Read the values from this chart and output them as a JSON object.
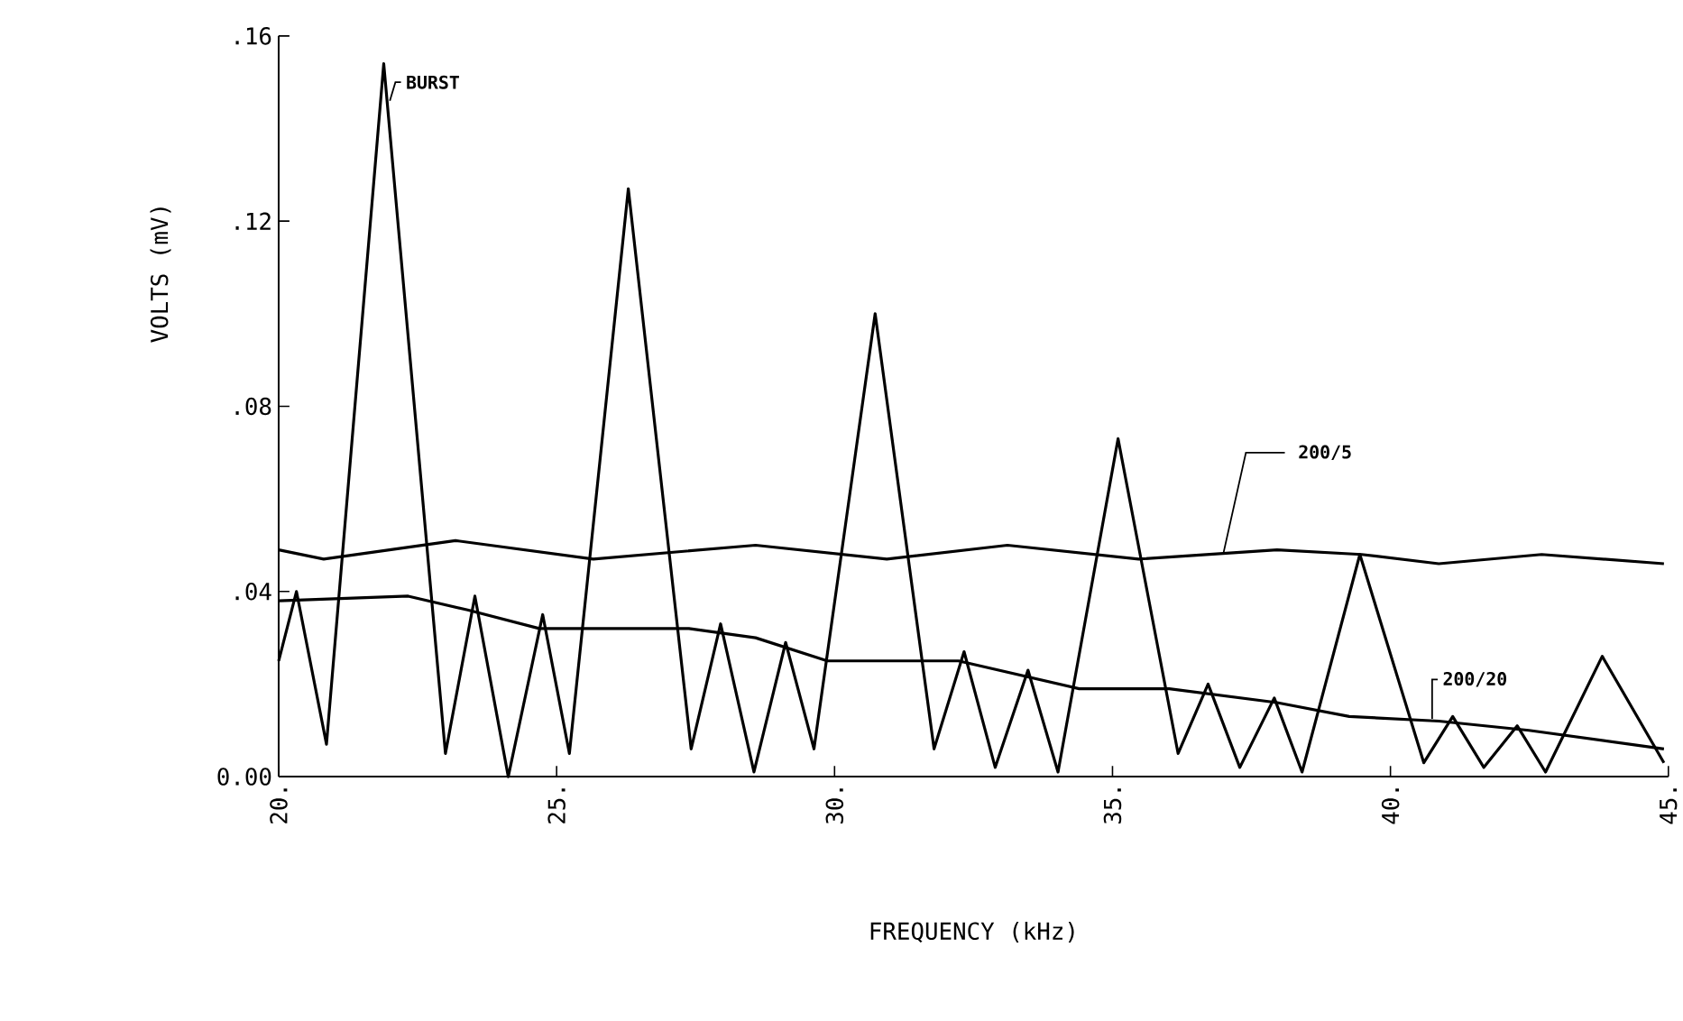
{
  "chart_data": {
    "type": "line",
    "xlabel": "FREQUENCY (kHz)",
    "ylabel": "VOLTS (mV)",
    "xlim": [
      20,
      45
    ],
    "ylim": [
      0,
      0.16
    ],
    "xticks": [
      {
        "value": 20,
        "label": "20."
      },
      {
        "value": 25,
        "label": "25."
      },
      {
        "value": 30,
        "label": "30."
      },
      {
        "value": 35,
        "label": "35."
      },
      {
        "value": 40,
        "label": "40."
      },
      {
        "value": 45,
        "label": "45."
      }
    ],
    "yticks": [
      {
        "value": 0,
        "label": "0.00"
      },
      {
        "value": 0.04,
        "label": ".04"
      },
      {
        "value": 0.08,
        "label": ".08"
      },
      {
        "value": 0.12,
        "label": ".12"
      },
      {
        "value": 0.16,
        "label": ".16"
      }
    ],
    "series": [
      {
        "name": "BURST",
        "color": "#000000",
        "x": [
          20,
          20.32,
          20.86,
          21.89,
          23.0,
          23.53,
          24.13,
          24.75,
          25.23,
          26.29,
          27.42,
          27.95,
          28.55,
          29.12,
          29.63,
          30.73,
          31.79,
          32.33,
          32.89,
          33.48,
          34.02,
          35.1,
          36.18,
          36.72,
          37.29,
          37.91,
          38.41,
          39.45,
          40.6,
          41.12,
          41.68,
          42.28,
          42.79,
          43.81,
          44.92
        ],
        "values": [
          0.025,
          0.04,
          0.007,
          0.154,
          0.005,
          0.039,
          0.0,
          0.035,
          0.005,
          0.127,
          0.006,
          0.033,
          0.001,
          0.029,
          0.006,
          0.1,
          0.006,
          0.027,
          0.002,
          0.023,
          0.001,
          0.073,
          0.005,
          0.02,
          0.002,
          0.017,
          0.001,
          0.048,
          0.003,
          0.013,
          0.002,
          0.011,
          0.001,
          0.026,
          0.003
        ]
      },
      {
        "name": "200/5",
        "color": "#000000",
        "x": [
          20,
          20.81,
          23.18,
          25.66,
          28.58,
          30.94,
          33.11,
          35.47,
          37.96,
          39.48,
          40.87,
          42.72,
          44.92
        ],
        "values": [
          0.049,
          0.047,
          0.051,
          0.047,
          0.05,
          0.047,
          0.05,
          0.047,
          0.049,
          0.048,
          0.046,
          0.048,
          0.046
        ]
      },
      {
        "name": "200/20",
        "color": "#000000",
        "x": [
          20,
          22.33,
          23.4,
          24.69,
          26.31,
          27.38,
          28.58,
          29.87,
          32.23,
          34.4,
          36.02,
          37.96,
          39.26,
          40.87,
          42.49,
          44.92
        ],
        "values": [
          0.038,
          0.039,
          0.036,
          0.032,
          0.032,
          0.032,
          0.03,
          0.025,
          0.025,
          0.019,
          0.019,
          0.016,
          0.013,
          0.012,
          0.01,
          0.006
        ]
      }
    ]
  }
}
